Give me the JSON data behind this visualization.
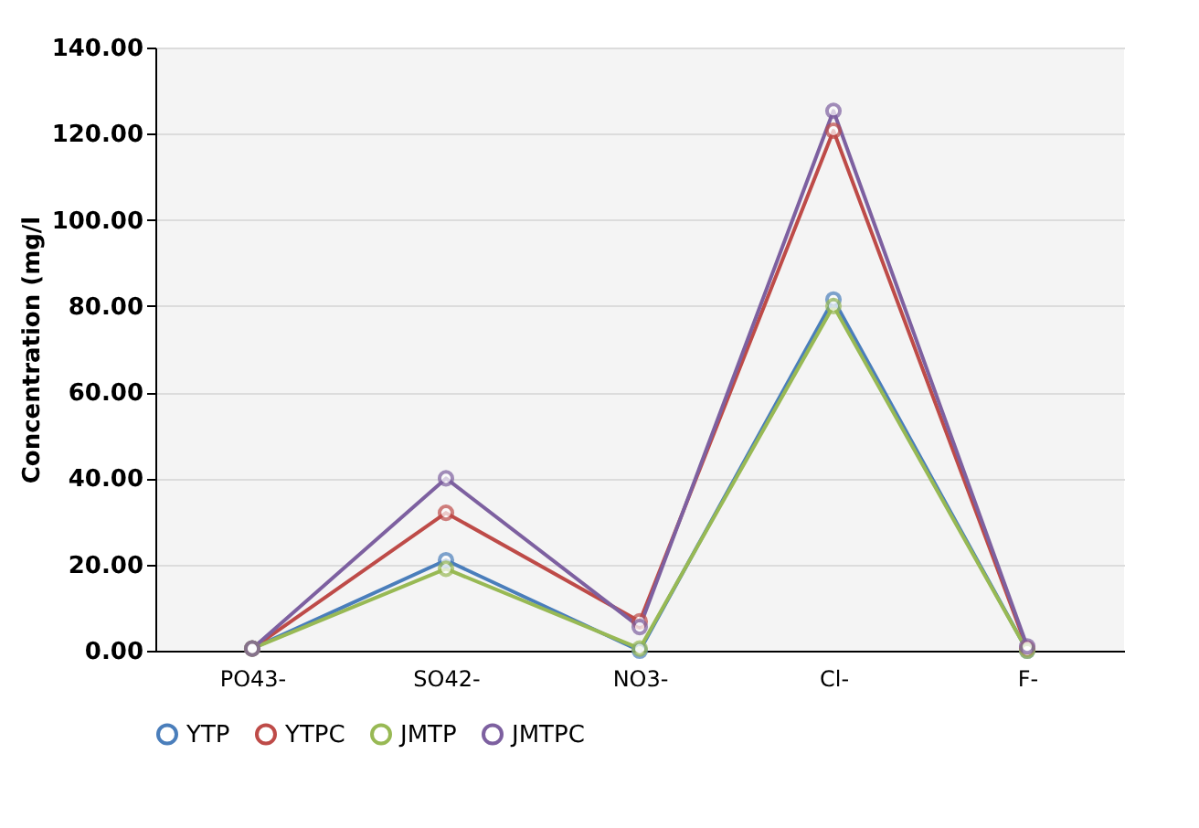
{
  "chart_data": {
    "type": "line",
    "ylabel": "Concentration (mg/l",
    "categories": [
      "PO43-",
      "SO42-",
      "NO3-",
      "Cl-",
      "F-"
    ],
    "series": [
      {
        "name": "YTP",
        "color": "#4a7ebb",
        "values": [
          0.5,
          21,
          0,
          81.5,
          0
        ]
      },
      {
        "name": "YTPC",
        "color": "#be4b48",
        "values": [
          0.5,
          32,
          6.8,
          120.7,
          0.5
        ]
      },
      {
        "name": "JMTP",
        "color": "#98b954",
        "values": [
          0.5,
          19,
          0.5,
          80,
          0
        ]
      },
      {
        "name": "JMTPC",
        "color": "#7d60a0",
        "values": [
          0.5,
          40,
          5.5,
          125.3,
          1
        ]
      }
    ],
    "ylim": [
      0,
      140
    ],
    "yticks": [
      {
        "value": 0,
        "label": "0.00"
      },
      {
        "value": 20,
        "label": "20.00"
      },
      {
        "value": 40,
        "label": "40.00"
      },
      {
        "value": 60,
        "label": "60.00"
      },
      {
        "value": 80,
        "label": "80.00"
      },
      {
        "value": 100,
        "label": "100.00"
      },
      {
        "value": 120,
        "label": "120.00"
      },
      {
        "value": 140,
        "label": "140.00"
      }
    ],
    "grid": "y",
    "legend": "bottom",
    "marker": "circle",
    "line_style": "solid"
  }
}
